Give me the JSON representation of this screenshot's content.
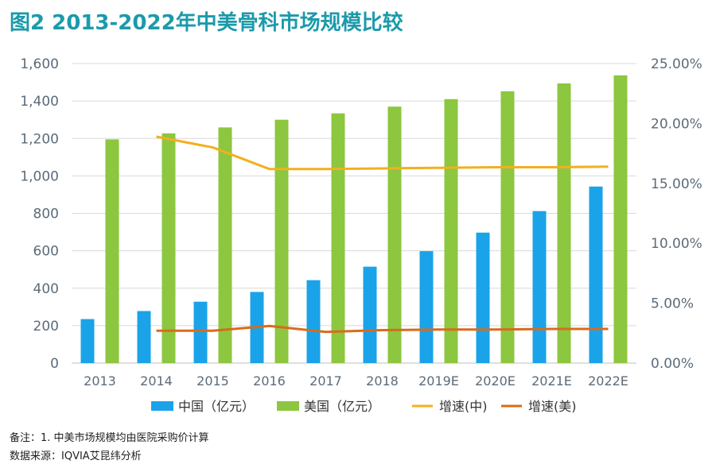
{
  "title": "图2 2013-2022年中美骨科市场规模比较",
  "chart_data": {
    "type": "bar",
    "categories": [
      "2013",
      "2014",
      "2015",
      "2016",
      "2017",
      "2018",
      "2019E",
      "2020E",
      "2021E",
      "2022E"
    ],
    "series": [
      {
        "name": "中国（亿元）",
        "kind": "bar",
        "axis": "left",
        "color": "#1aa3e8",
        "values": [
          235,
          278,
          328,
          380,
          443,
          515,
          598,
          697,
          812,
          943
        ]
      },
      {
        "name": "美国（亿元）",
        "kind": "bar",
        "axis": "left",
        "color": "#8dc63f",
        "values": [
          1195,
          1227,
          1259,
          1300,
          1334,
          1370,
          1410,
          1452,
          1494,
          1537
        ]
      },
      {
        "name": "增速(中)",
        "kind": "line",
        "axis": "right",
        "color": "#f2b01e",
        "values": [
          null,
          18.9,
          18.0,
          16.2,
          16.2,
          16.25,
          16.3,
          16.35,
          16.35,
          16.4
        ]
      },
      {
        "name": "增速(美)",
        "kind": "line",
        "axis": "right",
        "color": "#d96b1c",
        "values": [
          null,
          2.7,
          2.7,
          3.1,
          2.6,
          2.75,
          2.8,
          2.8,
          2.85,
          2.85
        ]
      }
    ],
    "y_left": {
      "min": 0,
      "max": 1600,
      "ticks": [
        "0",
        "200",
        "400",
        "600",
        "800",
        "1,000",
        "1,200",
        "1,400",
        "1,600"
      ]
    },
    "y_right": {
      "min": 0,
      "max": 25,
      "ticks": [
        "0.00%",
        "5.00%",
        "10.00%",
        "15.00%",
        "20.00%",
        "25.00%"
      ]
    },
    "grid": true,
    "legend": "bottom"
  },
  "notes": {
    "line1": "备注：1. 中美市场规模均由医院采购价计算",
    "line2": "数据来源：IQVIA艾昆纬分析"
  }
}
